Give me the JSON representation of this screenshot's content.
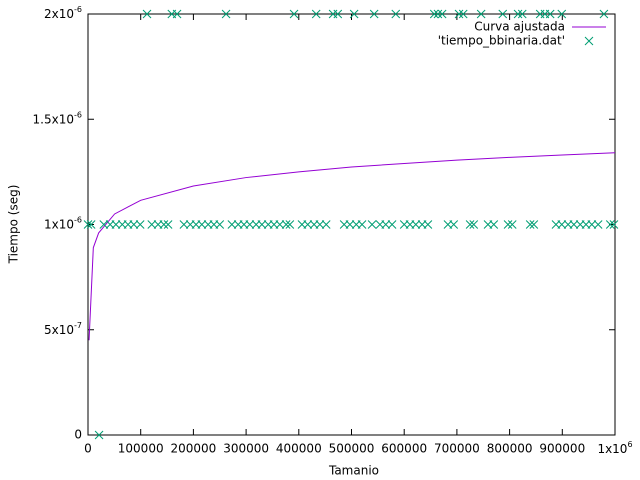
{
  "chart_data": {
    "type": "scatter",
    "xlabel": "Tamanio",
    "ylabel": "Tiempo (seg)",
    "xlim": [
      0,
      1000000
    ],
    "ylim": [
      0,
      2e-06
    ],
    "xticks": [
      0,
      100000,
      200000,
      300000,
      400000,
      500000,
      600000,
      700000,
      800000,
      900000,
      {
        "value": 1000000,
        "label": "1x10",
        "exponent": "6"
      }
    ],
    "yticks": [
      0,
      {
        "value": 5e-07,
        "label": "5x10",
        "exponent": "-7"
      },
      {
        "value": 1e-06,
        "label": "1x10",
        "exponent": "-6"
      },
      {
        "value": 1.5e-06,
        "label": "1.5x10",
        "exponent": "-6"
      },
      {
        "value": 2e-06,
        "label": "2x10",
        "exponent": "-6"
      }
    ],
    "legend": "top-right",
    "series": [
      {
        "name": "Curva ajustada",
        "style": "line",
        "color": "#9400d3",
        "x": [
          2000,
          10101,
          20202,
          50505,
          100000,
          200000,
          300000,
          400000,
          500000,
          600000,
          700000,
          800000,
          900000,
          1000000
        ],
        "values": [
          4.5e-07,
          8.9e-07,
          9.6e-07,
          1.05e-06,
          1.115e-06,
          1.183e-06,
          1.223e-06,
          1.25e-06,
          1.273e-06,
          1.29e-06,
          1.306e-06,
          1.319e-06,
          1.33e-06,
          1.341e-06
        ]
      },
      {
        "name": "'tiempo_bbinaria.dat'",
        "style": "points",
        "color": "#009e73",
        "x": [
          112000,
          159000,
          169000,
          262000,
          391000,
          433000,
          465000,
          474000,
          505000,
          543000,
          584000,
          657000,
          664000,
          672000,
          704000,
          712000,
          746000,
          787000,
          816000,
          824000,
          858000,
          867000,
          877000,
          899000,
          979000,
          0,
          6000,
          30000,
          42000,
          53000,
          65000,
          76000,
          87000,
          99000,
          121000,
          133000,
          144000,
          152000,
          182000,
          194000,
          205000,
          216000,
          228000,
          239000,
          250000,
          273000,
          285000,
          296000,
          307000,
          319000,
          330000,
          342000,
          353000,
          364000,
          376000,
          383000,
          406000,
          417000,
          429000,
          440000,
          452000,
          486000,
          497000,
          509000,
          520000,
          539000,
          554000,
          565000,
          577000,
          600000,
          611000,
          622000,
          634000,
          645000,
          683000,
          694000,
          725000,
          732000,
          759000,
          770000,
          797000,
          805000,
          839000,
          846000,
          888000,
          899000,
          911000,
          922000,
          934000,
          945000,
          956000,
          968000,
          991000,
          998000,
          21000
        ],
        "values": [
          2e-06,
          2e-06,
          2e-06,
          2e-06,
          2e-06,
          2e-06,
          2e-06,
          2e-06,
          2e-06,
          2e-06,
          2e-06,
          2e-06,
          2e-06,
          2e-06,
          2e-06,
          2e-06,
          2e-06,
          2e-06,
          2e-06,
          2e-06,
          2e-06,
          2e-06,
          2e-06,
          2e-06,
          2e-06,
          1e-06,
          1e-06,
          1e-06,
          1e-06,
          1e-06,
          1e-06,
          1e-06,
          1e-06,
          1e-06,
          1e-06,
          1e-06,
          1e-06,
          1e-06,
          1e-06,
          1e-06,
          1e-06,
          1e-06,
          1e-06,
          1e-06,
          1e-06,
          1e-06,
          1e-06,
          1e-06,
          1e-06,
          1e-06,
          1e-06,
          1e-06,
          1e-06,
          1e-06,
          1e-06,
          1e-06,
          1e-06,
          1e-06,
          1e-06,
          1e-06,
          1e-06,
          1e-06,
          1e-06,
          1e-06,
          1e-06,
          1e-06,
          1e-06,
          1e-06,
          1e-06,
          1e-06,
          1e-06,
          1e-06,
          1e-06,
          1e-06,
          1e-06,
          1e-06,
          1e-06,
          1e-06,
          1e-06,
          1e-06,
          1e-06,
          1e-06,
          1e-06,
          1e-06,
          1e-06,
          1e-06,
          1e-06,
          1e-06,
          1e-06,
          1e-06,
          1e-06,
          1e-06,
          1e-06,
          1e-06,
          0
        ]
      }
    ]
  }
}
